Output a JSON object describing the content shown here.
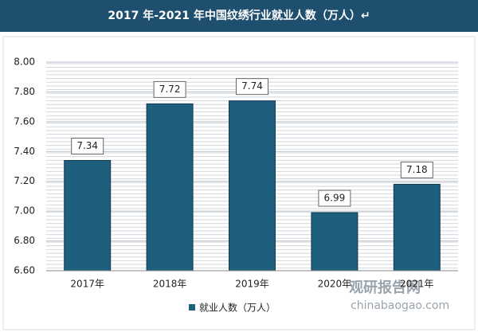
{
  "chart_data": {
    "type": "bar",
    "title": "2017 年-2021 年中国纹绣行业就业人数（万人）↵",
    "categories": [
      "2017年",
      "2018年",
      "2019年",
      "2020年",
      "2021年"
    ],
    "series": [
      {
        "name": "就业人数（万人）",
        "color": "#1f5f7e",
        "values": [
          7.34,
          7.72,
          7.74,
          6.99,
          7.18
        ]
      }
    ],
    "ylim": [
      6.6,
      8.0
    ],
    "yticks": [
      {
        "value": 6.6,
        "label": "6.60"
      },
      {
        "value": 6.8,
        "label": "6.80"
      },
      {
        "value": 7.0,
        "label": "7.00"
      },
      {
        "value": 7.2,
        "label": "7.20"
      },
      {
        "value": 7.4,
        "label": "7.40"
      },
      {
        "value": 7.6,
        "label": "7.60"
      },
      {
        "value": 7.8,
        "label": "7.80"
      },
      {
        "value": 8.0,
        "label": "8.00"
      }
    ],
    "grid": true,
    "legend": "bottom",
    "watermark": {
      "brand": "观研报告网",
      "site": "chinabaogao.com"
    }
  }
}
